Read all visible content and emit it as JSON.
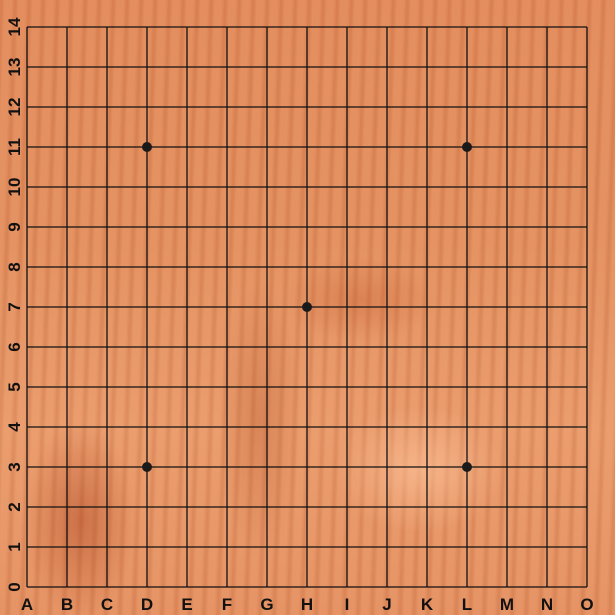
{
  "board": {
    "size": 15,
    "colors": {
      "grid_line": "#111111",
      "star_point": "#1a1a1a",
      "wood_base": "#e48f5e",
      "label": "#111111"
    },
    "column_labels": [
      "A",
      "B",
      "C",
      "D",
      "E",
      "F",
      "G",
      "H",
      "I",
      "J",
      "K",
      "L",
      "M",
      "N",
      "O"
    ],
    "row_labels": [
      "0",
      "1",
      "2",
      "3",
      "4",
      "5",
      "6",
      "7",
      "8",
      "9",
      "10",
      "11",
      "12",
      "13",
      "14"
    ],
    "star_points": [
      {
        "col": "D",
        "row": "11"
      },
      {
        "col": "L",
        "row": "11"
      },
      {
        "col": "H",
        "row": "7"
      },
      {
        "col": "D",
        "row": "3"
      },
      {
        "col": "L",
        "row": "3"
      }
    ],
    "stones": []
  }
}
